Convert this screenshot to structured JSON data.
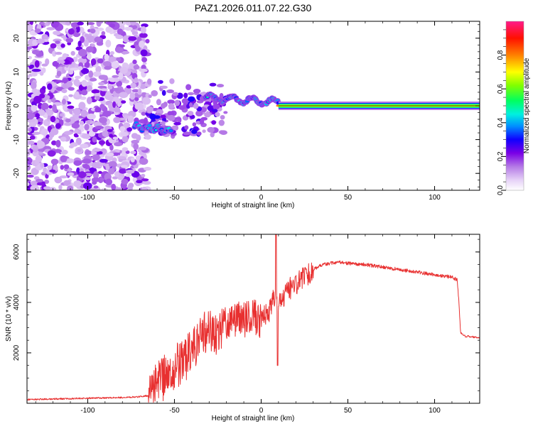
{
  "title": "PAZ1.2026.011.07.22.G30",
  "chart_data": [
    {
      "type": "heatmap",
      "name": "spectrogram",
      "xlabel": "Height of straight line (km)",
      "ylabel": "Frequency (Hz)",
      "xlim": [
        -135,
        126
      ],
      "ylim": [
        -25,
        25
      ],
      "xticks": [
        -100,
        -50,
        0,
        50,
        100
      ],
      "yticks": [
        -20,
        -10,
        0,
        10,
        20
      ],
      "colorbar": {
        "label": "Normalized spectral amplitude",
        "range": [
          0.0,
          1.0
        ],
        "ticks": [
          0.0,
          0.2,
          0.4,
          0.6,
          0.8
        ],
        "tick_labels": [
          "0.0",
          "0.2",
          "0.4",
          "0.6",
          "0.8"
        ]
      },
      "features": [
        {
          "name": "noise-region",
          "x_range": [
            -135,
            -65
          ],
          "freq_range": [
            -25,
            25
          ],
          "amplitude": 0.1
        },
        {
          "name": "scattered-fragments",
          "x_range": [
            -65,
            -20
          ],
          "freq_range": [
            -9,
            8
          ],
          "amplitude": 0.15
        },
        {
          "name": "early-trace",
          "x_range": [
            -73,
            -52
          ],
          "freq_center": [
            -6.0,
            -7.5
          ],
          "amplitude": 0.45
        },
        {
          "name": "wavy-trace",
          "x_range": [
            -32,
            10
          ],
          "freq_center": [
            2.5,
            1.0
          ],
          "amplitude": 0.5
        },
        {
          "name": "main-trace",
          "x_range": [
            10,
            126
          ],
          "freq_center": [
            0,
            0
          ],
          "amplitude": 0.95
        }
      ]
    },
    {
      "type": "line",
      "name": "snr",
      "xlabel": "Height of straight line (km)",
      "ylabel": "SNR (10 * v/v)",
      "xlim": [
        -135,
        126
      ],
      "ylim": [
        0,
        6700
      ],
      "xticks": [
        -100,
        -50,
        0,
        50,
        100
      ],
      "yticks": [
        2000,
        4000,
        6000
      ],
      "color": "#e83030",
      "x": [
        -135,
        -120,
        -100,
        -80,
        -70,
        -65,
        -60,
        -55,
        -50,
        -45,
        -40,
        -35,
        -30,
        -25,
        -20,
        -15,
        -10,
        -5,
        0,
        5,
        8,
        10,
        15,
        20,
        25,
        30,
        35,
        40,
        45,
        50,
        60,
        70,
        80,
        90,
        100,
        105,
        110,
        113,
        114,
        115,
        118,
        120,
        126
      ],
      "values": [
        150,
        170,
        200,
        230,
        260,
        300,
        700,
        1100,
        1400,
        1700,
        2000,
        2500,
        3000,
        2700,
        3100,
        3300,
        3300,
        3400,
        3300,
        3700,
        4300,
        3800,
        4500,
        4700,
        5000,
        5300,
        5500,
        5550,
        5600,
        5550,
        5500,
        5400,
        5300,
        5200,
        5100,
        5050,
        5000,
        4900,
        4000,
        2800,
        2650,
        2650,
        2600
      ]
    }
  ]
}
